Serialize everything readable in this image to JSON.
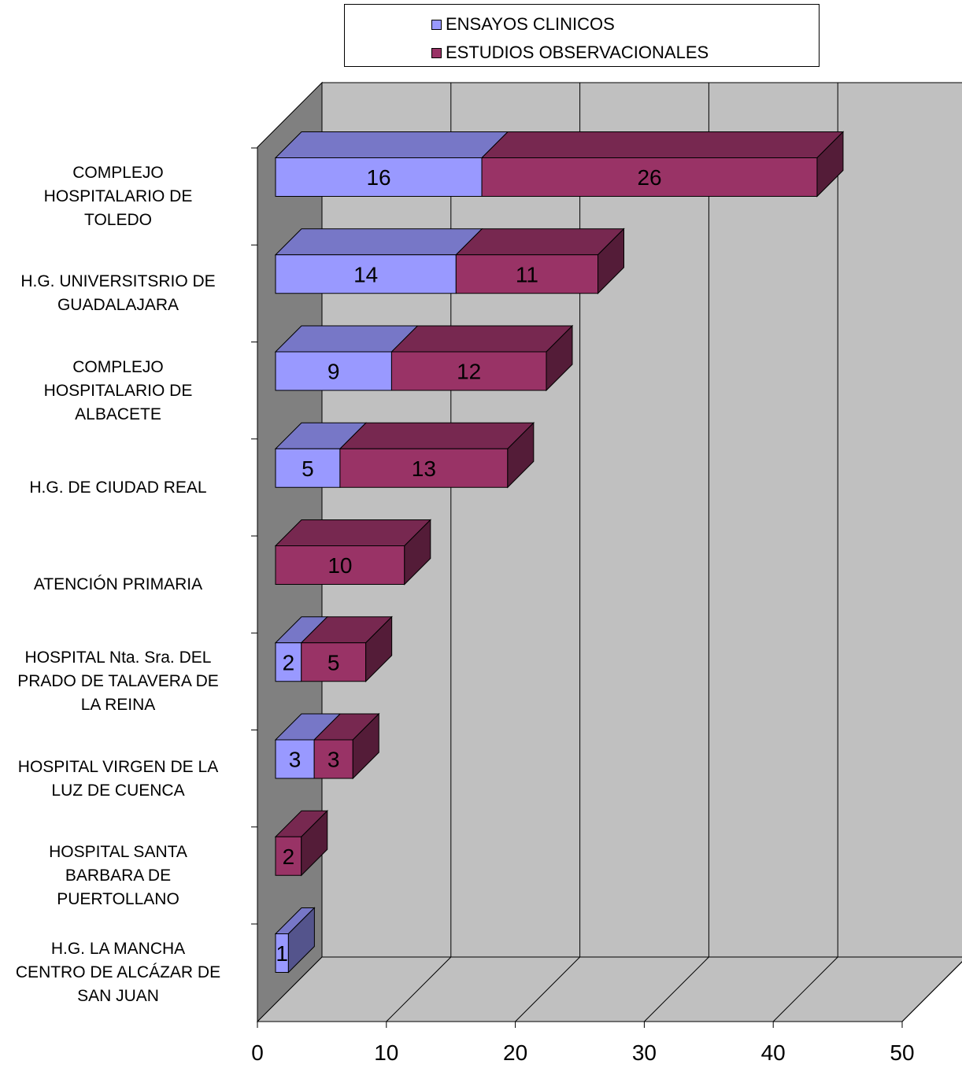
{
  "chart_data": {
    "type": "bar",
    "orientation": "horizontal",
    "stacked": true,
    "three_d": true,
    "title": "",
    "xlabel": "",
    "ylabel": "",
    "xlim": [
      0,
      50
    ],
    "x_ticks": [
      0,
      10,
      20,
      30,
      40,
      50
    ],
    "grid": true,
    "legend_position": "top",
    "categories": [
      "COMPLEJO HOSPITALARIO DE TOLEDO",
      "H.G. UNIVERSITSRIO DE GUADALAJARA",
      "COMPLEJO HOSPITALARIO  DE ALBACETE",
      "H.G. DE CIUDAD REAL",
      "ATENCIÓN PRIMARIA",
      "HOSPITAL Nta. Sra. DEL PRADO DE TALAVERA DE LA REINA",
      "HOSPITAL VIRGEN DE LA LUZ DE CUENCA",
      "HOSPITAL SANTA BARBARA DE PUERTOLLANO",
      "H.G. LA MANCHA CENTRO DE ALCÁZAR DE SAN JUAN"
    ],
    "category_lines": [
      [
        "COMPLEJO",
        "HOSPITALARIO DE",
        "TOLEDO"
      ],
      [
        "H.G. UNIVERSITSRIO DE",
        "GUADALAJARA"
      ],
      [
        "COMPLEJO",
        "HOSPITALARIO  DE",
        "ALBACETE"
      ],
      [
        "H.G. DE CIUDAD REAL"
      ],
      [
        "ATENCIÓN PRIMARIA"
      ],
      [
        "HOSPITAL Nta. Sra. DEL",
        "PRADO DE TALAVERA DE",
        "LA REINA"
      ],
      [
        "HOSPITAL VIRGEN DE LA",
        "LUZ DE CUENCA"
      ],
      [
        "HOSPITAL SANTA",
        "BARBARA DE",
        "PUERTOLLANO"
      ],
      [
        "H.G. LA MANCHA",
        "CENTRO DE ALCÁZAR DE",
        "SAN JUAN"
      ]
    ],
    "series": [
      {
        "name": "ENSAYOS CLINICOS",
        "values": [
          16,
          14,
          9,
          5,
          null,
          2,
          3,
          null,
          1
        ],
        "color": "#9999ff"
      },
      {
        "name": "ESTUDIOS OBSERVACIONALES",
        "values": [
          26,
          11,
          12,
          13,
          10,
          5,
          3,
          2,
          null
        ],
        "color": "#993366"
      }
    ]
  },
  "colors": {
    "wall_back": "#c0c0c0",
    "wall_side": "#808080",
    "floor": "#c0c0c0"
  }
}
